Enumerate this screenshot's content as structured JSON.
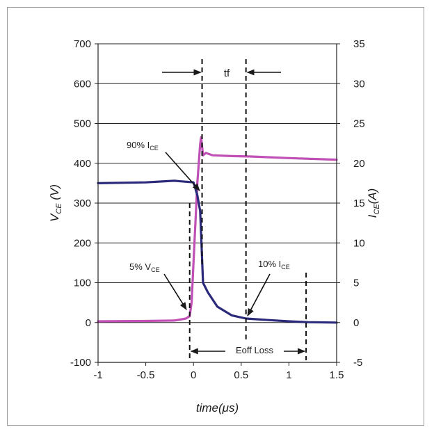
{
  "chart_data": {
    "type": "line",
    "xlabel": "time(μs)",
    "xlim": [
      -1,
      1.5
    ],
    "x_ticks": [
      "-1",
      "-0.5",
      "0",
      "0.5",
      "1",
      "1.5"
    ],
    "ylabel_left": {
      "main": "V",
      "sub": "CE",
      "unit": " (V)"
    },
    "ylim_left": [
      -100,
      700
    ],
    "y_ticks_left": [
      "-100",
      "0",
      "100",
      "200",
      "300",
      "400",
      "500",
      "600",
      "700"
    ],
    "ylabel_right": {
      "main": "I",
      "sub": "CE",
      "unit": "(A)"
    },
    "ylim_right": [
      -5,
      35
    ],
    "y_ticks_right": [
      "-5",
      "0",
      "5",
      "10",
      "15",
      "20",
      "25",
      "30",
      "35"
    ],
    "grid": "horizontal",
    "series": [
      {
        "axis": "left",
        "color": "#c04fb6",
        "x": [
          -1.0,
          -0.5,
          -0.2,
          -0.08,
          -0.04,
          -0.02,
          0.0,
          0.04,
          0.07,
          0.08,
          0.1,
          0.13,
          0.2,
          0.4,
          0.6,
          1.0,
          1.5
        ],
        "y": [
          3,
          4,
          5,
          10,
          16,
          50,
          150,
          350,
          448,
          465,
          420,
          426,
          420,
          418,
          417,
          413,
          409
        ]
      },
      {
        "axis": "right",
        "color": "#2b2a7a",
        "x": [
          -1.0,
          -0.5,
          -0.2,
          0.0,
          0.04,
          0.07,
          0.08,
          0.1,
          0.15,
          0.25,
          0.4,
          0.55,
          0.8,
          1.0,
          1.2,
          1.5
        ],
        "y": [
          17.5,
          17.6,
          17.8,
          17.6,
          16.0,
          14.0,
          11.0,
          5.0,
          3.8,
          2.0,
          0.9,
          0.5,
          0.3,
          0.15,
          0.05,
          0.0
        ]
      }
    ],
    "annotations": {
      "tf": "tf",
      "ice90": {
        "main": "90% I",
        "sub": "CE"
      },
      "vce5": {
        "main": "5% V",
        "sub": "CE"
      },
      "ice10": {
        "main": "10% I",
        "sub": "CE"
      },
      "eoff": "Eoff Loss"
    },
    "markers_x": {
      "vce5": -0.04,
      "ice90": 0.09,
      "ice10": 0.55,
      "eoff_end": 1.18
    }
  }
}
